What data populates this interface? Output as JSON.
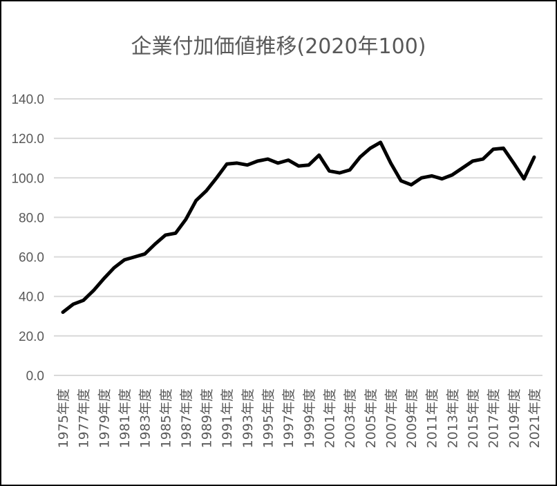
{
  "chart_data": {
    "type": "line",
    "title": "企業付加価値推移(2020年100)",
    "ylim": [
      0,
      140
    ],
    "yticks": [
      "0.0",
      "20.0",
      "40.0",
      "60.0",
      "80.0",
      "100.0",
      "120.0",
      "140.0"
    ],
    "xtick_labels": [
      "1975年度",
      "1977年度",
      "1979年度",
      "1981年度",
      "1983年度",
      "1985年度",
      "1987年度",
      "1989年度",
      "1991年度",
      "1993年度",
      "1995年度",
      "1997年度",
      "1999年度",
      "2001年度",
      "2003年度",
      "2005年度",
      "2007年度",
      "2009年度",
      "2011年度",
      "2013年度",
      "2015年度",
      "2017年度",
      "2019年度",
      "2021年度"
    ],
    "grid": true,
    "legend": "none",
    "line_color": "#000000",
    "series": [
      {
        "x": [
          1975,
          1976,
          1977,
          1978,
          1979,
          1980,
          1981,
          1982,
          1983,
          1984,
          1985,
          1986,
          1987,
          1988,
          1989,
          1990,
          1991,
          1992,
          1993,
          1994,
          1995,
          1996,
          1997,
          1998,
          1999,
          2000,
          2001,
          2002,
          2003,
          2004,
          2005,
          2006,
          2007,
          2008,
          2009,
          2010,
          2011,
          2012,
          2013,
          2014,
          2015,
          2016,
          2017,
          2018,
          2019,
          2020,
          2021
        ],
        "values": [
          32,
          36,
          38,
          43,
          49,
          54.5,
          58.5,
          60,
          61.5,
          66.5,
          71,
          72,
          79,
          88.5,
          93.5,
          100,
          107,
          107.5,
          106.5,
          108.5,
          109.5,
          107.5,
          109,
          106,
          106.5,
          111.5,
          103.5,
          102.5,
          104,
          110.5,
          115,
          118,
          107.5,
          98.5,
          96.5,
          100,
          101,
          99.5,
          101.5,
          105,
          108.5,
          109.5,
          114.5,
          115,
          107.5,
          99.5,
          110.5
        ]
      }
    ]
  }
}
